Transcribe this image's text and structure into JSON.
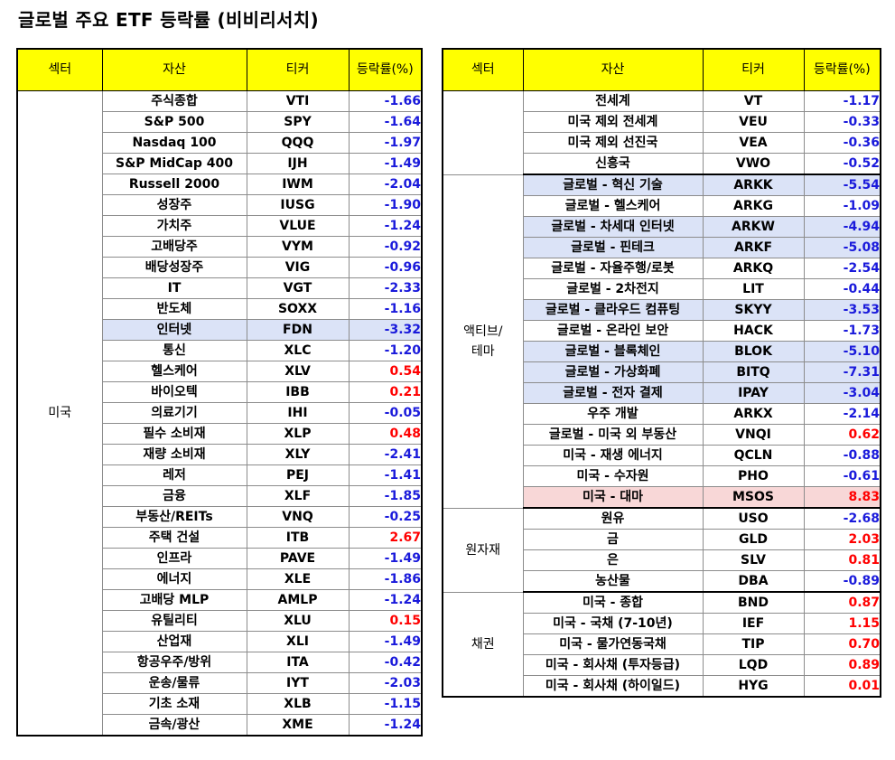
{
  "title": "글로벌 주요 ETF 등락률 (비비리서치)",
  "headers": {
    "sector": "섹터",
    "asset": "자산",
    "ticker": "티커",
    "change": "등락률(%)"
  },
  "colors": {
    "header_bg": "#ffff00",
    "negative": "#1a1adb",
    "positive": "#ff0000",
    "highlight_blue": "#dbe3f7",
    "highlight_pink": "#f8d7d7"
  },
  "left": {
    "sector": "미국",
    "rows": [
      {
        "asset": "주식종합",
        "ticker": "VTI",
        "change": "-1.66"
      },
      {
        "asset": "S&P 500",
        "ticker": "SPY",
        "change": "-1.64"
      },
      {
        "asset": "Nasdaq 100",
        "ticker": "QQQ",
        "change": "-1.97"
      },
      {
        "asset": "S&P MidCap 400",
        "ticker": "IJH",
        "change": "-1.49"
      },
      {
        "asset": "Russell 2000",
        "ticker": "IWM",
        "change": "-2.04"
      },
      {
        "asset": "성장주",
        "ticker": "IUSG",
        "change": "-1.90"
      },
      {
        "asset": "가치주",
        "ticker": "VLUE",
        "change": "-1.24"
      },
      {
        "asset": "고배당주",
        "ticker": "VYM",
        "change": "-0.92"
      },
      {
        "asset": "배당성장주",
        "ticker": "VIG",
        "change": "-0.96"
      },
      {
        "asset": "IT",
        "ticker": "VGT",
        "change": "-2.33"
      },
      {
        "asset": "반도체",
        "ticker": "SOXX",
        "change": "-1.16"
      },
      {
        "asset": "인터넷",
        "ticker": "FDN",
        "change": "-3.32",
        "hl": "blue"
      },
      {
        "asset": "통신",
        "ticker": "XLC",
        "change": "-1.20"
      },
      {
        "asset": "헬스케어",
        "ticker": "XLV",
        "change": "0.54"
      },
      {
        "asset": "바이오텍",
        "ticker": "IBB",
        "change": "0.21"
      },
      {
        "asset": "의료기기",
        "ticker": "IHI",
        "change": "-0.05"
      },
      {
        "asset": "필수 소비재",
        "ticker": "XLP",
        "change": "0.48"
      },
      {
        "asset": "재량 소비재",
        "ticker": "XLY",
        "change": "-2.41"
      },
      {
        "asset": "레저",
        "ticker": "PEJ",
        "change": "-1.41"
      },
      {
        "asset": "금융",
        "ticker": "XLF",
        "change": "-1.85"
      },
      {
        "asset": "부동산/REITs",
        "ticker": "VNQ",
        "change": "-0.25"
      },
      {
        "asset": "주택 건설",
        "ticker": "ITB",
        "change": "2.67"
      },
      {
        "asset": "인프라",
        "ticker": "PAVE",
        "change": "-1.49"
      },
      {
        "asset": "에너지",
        "ticker": "XLE",
        "change": "-1.86"
      },
      {
        "asset": "고배당 MLP",
        "ticker": "AMLP",
        "change": "-1.24"
      },
      {
        "asset": "유틸리티",
        "ticker": "XLU",
        "change": "0.15"
      },
      {
        "asset": "산업재",
        "ticker": "XLI",
        "change": "-1.49"
      },
      {
        "asset": "항공우주/방위",
        "ticker": "ITA",
        "change": "-0.42"
      },
      {
        "asset": "운송/물류",
        "ticker": "IYT",
        "change": "-2.03"
      },
      {
        "asset": "기초 소재",
        "ticker": "XLB",
        "change": "-1.15"
      },
      {
        "asset": "금속/광산",
        "ticker": "XME",
        "change": "-1.24"
      }
    ]
  },
  "right": {
    "groups": [
      {
        "sector": "",
        "rows": [
          {
            "asset": "전세계",
            "ticker": "VT",
            "change": "-1.17"
          },
          {
            "asset": "미국 제외 전세계",
            "ticker": "VEU",
            "change": "-0.33"
          },
          {
            "asset": "미국 제외 선진국",
            "ticker": "VEA",
            "change": "-0.36"
          },
          {
            "asset": "신흥국",
            "ticker": "VWO",
            "change": "-0.52"
          }
        ]
      },
      {
        "sector": "액티브/\n테마",
        "rows": [
          {
            "asset": "글로벌 - 혁신 기술",
            "ticker": "ARKK",
            "change": "-5.54",
            "hl": "blue"
          },
          {
            "asset": "글로벌 - 헬스케어",
            "ticker": "ARKG",
            "change": "-1.09"
          },
          {
            "asset": "글로벌 - 차세대 인터넷",
            "ticker": "ARKW",
            "change": "-4.94",
            "hl": "blue"
          },
          {
            "asset": "글로벌 - 핀테크",
            "ticker": "ARKF",
            "change": "-5.08",
            "hl": "blue"
          },
          {
            "asset": "글로벌 - 자율주행/로봇",
            "ticker": "ARKQ",
            "change": "-2.54"
          },
          {
            "asset": "글로벌 - 2차전지",
            "ticker": "LIT",
            "change": "-0.44"
          },
          {
            "asset": "글로벌 - 클라우드 컴퓨팅",
            "ticker": "SKYY",
            "change": "-3.53",
            "hl": "blue"
          },
          {
            "asset": "글로벌 - 온라인 보안",
            "ticker": "HACK",
            "change": "-1.73"
          },
          {
            "asset": "글로벌 - 블록체인",
            "ticker": "BLOK",
            "change": "-5.10",
            "hl": "blue"
          },
          {
            "asset": "글로벌 - 가상화폐",
            "ticker": "BITQ",
            "change": "-7.31",
            "hl": "blue"
          },
          {
            "asset": "글로벌 - 전자 결제",
            "ticker": "IPAY",
            "change": "-3.04",
            "hl": "blue"
          },
          {
            "asset": "우주 개발",
            "ticker": "ARKX",
            "change": "-2.14"
          },
          {
            "asset": "글로벌 - 미국 외 부동산",
            "ticker": "VNQI",
            "change": "0.62"
          },
          {
            "asset": "미국 - 재생 에너지",
            "ticker": "QCLN",
            "change": "-0.88"
          },
          {
            "asset": "미국 - 수자원",
            "ticker": "PHO",
            "change": "-0.61"
          },
          {
            "asset": "미국 - 대마",
            "ticker": "MSOS",
            "change": "8.83",
            "hl": "pink"
          }
        ]
      },
      {
        "sector": "원자재",
        "rows": [
          {
            "asset": "원유",
            "ticker": "USO",
            "change": "-2.68"
          },
          {
            "asset": "금",
            "ticker": "GLD",
            "change": "2.03"
          },
          {
            "asset": "은",
            "ticker": "SLV",
            "change": "0.81"
          },
          {
            "asset": "농산물",
            "ticker": "DBA",
            "change": "-0.89"
          }
        ]
      },
      {
        "sector": "채권",
        "rows": [
          {
            "asset": "미국 - 종합",
            "ticker": "BND",
            "change": "0.87"
          },
          {
            "asset": "미국 - 국채 (7-10년)",
            "ticker": "IEF",
            "change": "1.15"
          },
          {
            "asset": "미국 - 물가연동국채",
            "ticker": "TIP",
            "change": "0.70"
          },
          {
            "asset": "미국 - 회사채 (투자등급)",
            "ticker": "LQD",
            "change": "0.89"
          },
          {
            "asset": "미국 - 회사채 (하이일드)",
            "ticker": "HYG",
            "change": "0.01"
          }
        ]
      }
    ]
  }
}
